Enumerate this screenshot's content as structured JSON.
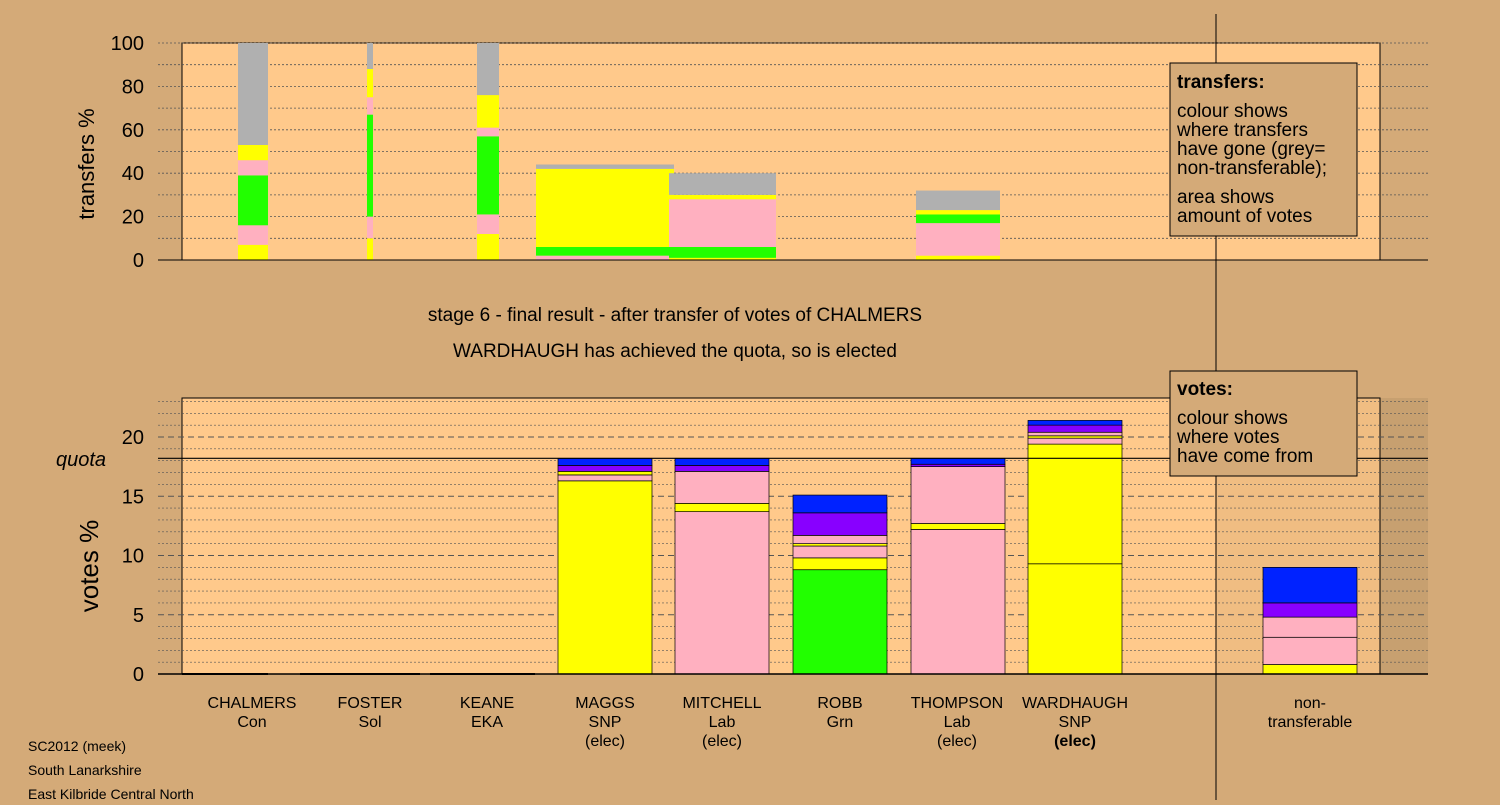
{
  "colors": {
    "background": "#d4aa78",
    "plot_bg": "#ffc98b",
    "yellow": "#ffff00",
    "pink": "#ffb0c0",
    "green": "#22ff00",
    "grey": "#b0b0b0",
    "blue": "#0022ff",
    "purple": "#8800ff"
  },
  "titles": {
    "stage": "stage 6 - final result - after transfer of votes of CHALMERS",
    "outcome": "WARDHAUGH has achieved the quota, so is elected"
  },
  "legend_transfers": {
    "title": "transfers:",
    "line1": "colour shows",
    "line2": "where transfers",
    "line3": "have gone (grey=",
    "line4": "non-transferable);",
    "line5": "area shows",
    "line6": "amount of votes"
  },
  "legend_votes": {
    "title": "votes:",
    "line1": "colour shows",
    "line2": "where votes",
    "line3": "have come from"
  },
  "footer": {
    "line1": "SC2012 (meek)",
    "line2": "South Lanarkshire",
    "line3": "East Kilbride Central North"
  },
  "candidates": [
    {
      "name": "CHALMERS",
      "party": "Con",
      "status": ""
    },
    {
      "name": "FOSTER",
      "party": "Sol",
      "status": ""
    },
    {
      "name": "KEANE",
      "party": "EKA",
      "status": ""
    },
    {
      "name": "MAGGS",
      "party": "SNP",
      "status": "(elec)"
    },
    {
      "name": "MITCHELL",
      "party": "Lab",
      "status": "(elec)"
    },
    {
      "name": "ROBB",
      "party": "Grn",
      "status": ""
    },
    {
      "name": "THOMPSON",
      "party": "Lab",
      "status": "(elec)"
    },
    {
      "name": "WARDHAUGH",
      "party": "SNP",
      "status": "(elec)"
    },
    {
      "name": "non-",
      "party": "transferable",
      "status": ""
    }
  ],
  "chart_data": [
    {
      "type": "bar",
      "name": "transfers",
      "ylabel": "transfers %",
      "ylim": [
        0,
        100
      ],
      "yticks": [
        0,
        20,
        40,
        60,
        80,
        100
      ],
      "grid": true,
      "columns": [
        {
          "label": "CHALMERS",
          "segments": [
            {
              "color": "yellow",
              "from": 0,
              "to": 7
            },
            {
              "color": "pink",
              "from": 7,
              "to": 16
            },
            {
              "color": "green",
              "from": 16,
              "to": 39
            },
            {
              "color": "pink",
              "from": 39,
              "to": 46
            },
            {
              "color": "yellow",
              "from": 46,
              "to": 53
            },
            {
              "color": "grey",
              "from": 53,
              "to": 100
            }
          ]
        },
        {
          "label": "FOSTER",
          "segments": [
            {
              "color": "yellow",
              "from": 0,
              "to": 10
            },
            {
              "color": "pink",
              "from": 10,
              "to": 20
            },
            {
              "color": "green",
              "from": 20,
              "to": 67
            },
            {
              "color": "pink",
              "from": 67,
              "to": 75
            },
            {
              "color": "yellow",
              "from": 75,
              "to": 88
            },
            {
              "color": "grey",
              "from": 88,
              "to": 100
            }
          ]
        },
        {
          "label": "KEANE",
          "segments": [
            {
              "color": "yellow",
              "from": 0,
              "to": 12
            },
            {
              "color": "pink",
              "from": 12,
              "to": 21
            },
            {
              "color": "green",
              "from": 21,
              "to": 57
            },
            {
              "color": "pink",
              "from": 57,
              "to": 61
            },
            {
              "color": "yellow",
              "from": 61,
              "to": 76
            },
            {
              "color": "grey",
              "from": 76,
              "to": 100
            }
          ]
        },
        {
          "label": "MAGGS",
          "segments": [
            {
              "color": "pink",
              "from": 0,
              "to": 2
            },
            {
              "color": "green",
              "from": 2,
              "to": 6
            },
            {
              "color": "yellow",
              "from": 6,
              "to": 42
            },
            {
              "color": "grey",
              "from": 42,
              "to": 44
            }
          ]
        },
        {
          "label": "MITCHELL",
          "segments": [
            {
              "color": "yellow",
              "from": 0,
              "to": 1
            },
            {
              "color": "green",
              "from": 1,
              "to": 6
            },
            {
              "color": "pink",
              "from": 6,
              "to": 28
            },
            {
              "color": "yellow",
              "from": 28,
              "to": 30
            },
            {
              "color": "grey",
              "from": 30,
              "to": 40
            }
          ]
        },
        {
          "label": "THOMPSON",
          "segments": [
            {
              "color": "yellow",
              "from": 0,
              "to": 2
            },
            {
              "color": "pink",
              "from": 2,
              "to": 17
            },
            {
              "color": "green",
              "from": 17,
              "to": 21
            },
            {
              "color": "yellow",
              "from": 21,
              "to": 23
            },
            {
              "color": "grey",
              "from": 23,
              "to": 32
            }
          ]
        }
      ]
    },
    {
      "type": "bar",
      "name": "votes",
      "ylabel": "votes %",
      "ylim": [
        0,
        23
      ],
      "yticks": [
        0,
        5,
        10,
        15,
        20
      ],
      "quota": 18.2,
      "quota_label": "quota",
      "grid": true,
      "columns": [
        {
          "label": "MAGGS",
          "segments": [
            {
              "color": "yellow",
              "from": 0,
              "to": 16.3
            },
            {
              "color": "pink",
              "from": 16.3,
              "to": 16.8
            },
            {
              "color": "yellow",
              "from": 16.8,
              "to": 17.1
            },
            {
              "color": "purple",
              "from": 17.1,
              "to": 17.6
            },
            {
              "color": "blue",
              "from": 17.6,
              "to": 18.2
            }
          ]
        },
        {
          "label": "MITCHELL",
          "segments": [
            {
              "color": "pink",
              "from": 0,
              "to": 13.7
            },
            {
              "color": "yellow",
              "from": 13.7,
              "to": 14.4
            },
            {
              "color": "pink",
              "from": 14.4,
              "to": 17.1
            },
            {
              "color": "purple",
              "from": 17.1,
              "to": 17.6
            },
            {
              "color": "blue",
              "from": 17.6,
              "to": 18.2
            }
          ]
        },
        {
          "label": "ROBB",
          "segments": [
            {
              "color": "green",
              "from": 0,
              "to": 8.8
            },
            {
              "color": "yellow",
              "from": 8.8,
              "to": 9.8
            },
            {
              "color": "pink",
              "from": 9.8,
              "to": 10.8
            },
            {
              "color": "yellow",
              "from": 10.8,
              "to": 11
            },
            {
              "color": "pink",
              "from": 11,
              "to": 11.7
            },
            {
              "color": "purple",
              "from": 11.7,
              "to": 13.6
            },
            {
              "color": "blue",
              "from": 13.6,
              "to": 15.1
            }
          ]
        },
        {
          "label": "THOMPSON",
          "segments": [
            {
              "color": "pink",
              "from": 0,
              "to": 12.2
            },
            {
              "color": "yellow",
              "from": 12.2,
              "to": 12.7
            },
            {
              "color": "pink",
              "from": 12.7,
              "to": 17.5
            },
            {
              "color": "purple",
              "from": 17.5,
              "to": 17.7
            },
            {
              "color": "blue",
              "from": 17.7,
              "to": 18.2
            }
          ]
        },
        {
          "label": "WARDHAUGH",
          "segments": [
            {
              "color": "yellow",
              "from": 0,
              "to": 9.3
            },
            {
              "color": "yellow",
              "from": 9.3,
              "to": 19.4
            },
            {
              "color": "pink",
              "from": 19.4,
              "to": 19.9
            },
            {
              "color": "yellow",
              "from": 19.9,
              "to": 20.1
            },
            {
              "color": "pink",
              "from": 20.1,
              "to": 20.4
            },
            {
              "color": "purple",
              "from": 20.4,
              "to": 21
            },
            {
              "color": "blue",
              "from": 21,
              "to": 21.4
            }
          ]
        },
        {
          "label": "non-transferable",
          "segments": [
            {
              "color": "yellow",
              "from": 0,
              "to": 0.8
            },
            {
              "color": "pink",
              "from": 0.8,
              "to": 3.1
            },
            {
              "color": "pink",
              "from": 3.1,
              "to": 4.8
            },
            {
              "color": "purple",
              "from": 4.8,
              "to": 6
            },
            {
              "color": "blue",
              "from": 6,
              "to": 9
            }
          ]
        }
      ]
    }
  ]
}
